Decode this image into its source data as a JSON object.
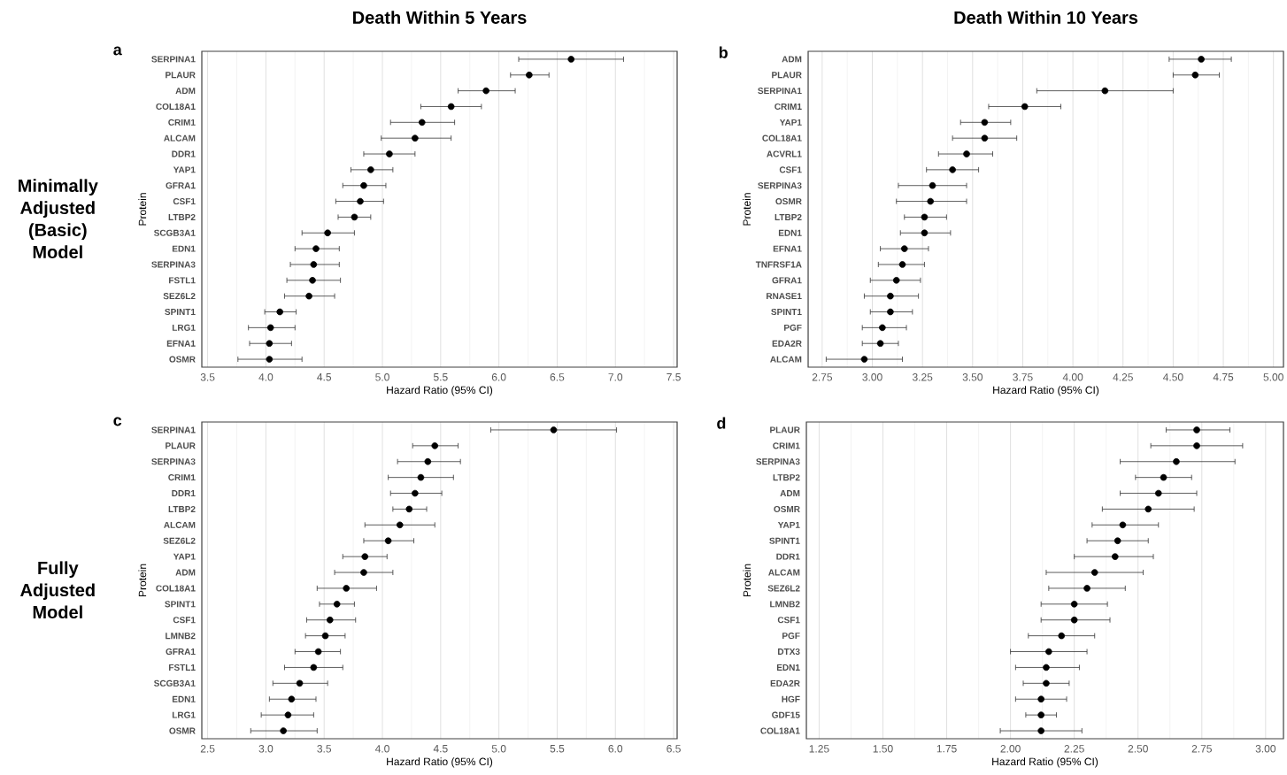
{
  "chart_data": [
    {
      "type": "scatter",
      "orientation": "horizontal",
      "title": "Death Within 5 Years",
      "xlabel": "Hazard Ratio (95% CI)",
      "ylabel": "Protein",
      "annotations": [
        "a",
        "Minimally Adjusted (Basic) Model"
      ],
      "categories": [
        "SERPINA1",
        "PLAUR",
        "ADM",
        "COL18A1",
        "CRIM1",
        "ALCAM",
        "DDR1",
        "YAP1",
        "GFRA1",
        "CSF1",
        "LTBP2",
        "SCGB3A1",
        "EDN1",
        "SERPINA3",
        "FSTL1",
        "SEZ6L2",
        "SPINT1",
        "LRG1",
        "EFNA1",
        "OSMR"
      ],
      "series": [
        {
          "color": "#000000",
          "values": [
            6.62,
            6.26,
            5.89,
            5.59,
            5.34,
            5.28,
            5.06,
            4.9,
            4.84,
            4.81,
            4.76,
            4.53,
            4.43,
            4.41,
            4.4,
            4.37,
            4.12,
            4.04,
            4.03,
            4.03
          ],
          "errors": [
            [
              6.17,
              7.07
            ],
            [
              6.1,
              6.43
            ],
            [
              5.65,
              6.14
            ],
            [
              5.33,
              5.85
            ],
            [
              5.07,
              5.62
            ],
            [
              4.99,
              5.59
            ],
            [
              4.84,
              5.28
            ],
            [
              4.73,
              5.09
            ],
            [
              4.66,
              5.03
            ],
            [
              4.6,
              5.01
            ],
            [
              4.62,
              4.9
            ],
            [
              4.31,
              4.76
            ],
            [
              4.25,
              4.63
            ],
            [
              4.21,
              4.63
            ],
            [
              4.18,
              4.64
            ],
            [
              4.16,
              4.59
            ],
            [
              3.99,
              4.26
            ],
            [
              3.85,
              4.25
            ],
            [
              3.86,
              4.22
            ],
            [
              3.76,
              4.31
            ]
          ]
        }
      ],
      "xlim": [
        3.45,
        7.53
      ],
      "xticks": [
        3.5,
        {
          "value": 4,
          "label": "4.0"
        },
        4.5,
        {
          "value": 5,
          "label": "5.0"
        },
        5.5,
        {
          "value": 6,
          "label": "6.0"
        },
        6.5,
        {
          "value": 7,
          "label": "7.0"
        },
        7.5
      ],
      "grid": "x",
      "marker": "circle"
    },
    {
      "type": "scatter",
      "orientation": "horizontal",
      "title": "Death Within 10 Years",
      "xlabel": "Hazard Ratio (95% CI)",
      "ylabel": "Protein",
      "annotations": [
        "b"
      ],
      "categories": [
        "ADM",
        "PLAUR",
        "SERPINA1",
        "CRIM1",
        "YAP1",
        "COL18A1",
        "ACVRL1",
        "CSF1",
        "SERPINA3",
        "OSMR",
        "LTBP2",
        "EDN1",
        "EFNA1",
        "TNFRSF1A",
        "GFRA1",
        "RNASE1",
        "SPINT1",
        "PGF",
        "EDA2R",
        "ALCAM"
      ],
      "series": [
        {
          "color": "#000000",
          "values": [
            4.64,
            4.61,
            4.16,
            3.76,
            3.56,
            3.56,
            3.47,
            3.4,
            3.3,
            3.29,
            3.26,
            3.26,
            3.16,
            3.15,
            3.12,
            3.09,
            3.09,
            3.05,
            3.04,
            2.96
          ],
          "errors": [
            [
              4.48,
              4.79
            ],
            [
              4.5,
              4.73
            ],
            [
              3.82,
              4.5
            ],
            [
              3.58,
              3.94
            ],
            [
              3.44,
              3.69
            ],
            [
              3.4,
              3.72
            ],
            [
              3.33,
              3.6
            ],
            [
              3.27,
              3.53
            ],
            [
              3.13,
              3.47
            ],
            [
              3.12,
              3.47
            ],
            [
              3.16,
              3.37
            ],
            [
              3.14,
              3.39
            ],
            [
              3.04,
              3.28
            ],
            [
              3.03,
              3.26
            ],
            [
              2.99,
              3.24
            ],
            [
              2.96,
              3.23
            ],
            [
              2.99,
              3.2
            ],
            [
              2.95,
              3.17
            ],
            [
              2.95,
              3.13
            ],
            [
              2.77,
              3.15
            ]
          ]
        }
      ],
      "xlim": [
        2.68,
        5.05
      ],
      "xticks": [
        2.75,
        {
          "value": 3,
          "label": "3.00"
        },
        3.25,
        {
          "value": 3.5,
          "label": "3.50"
        },
        3.75,
        {
          "value": 4,
          "label": "4.00"
        },
        4.25,
        {
          "value": 4.5,
          "label": "4.50"
        },
        4.75,
        {
          "value": 5,
          "label": "5.00"
        }
      ],
      "grid": "x",
      "marker": "circle"
    },
    {
      "type": "scatter",
      "orientation": "horizontal",
      "xlabel": "Hazard Ratio (95% CI)",
      "ylabel": "Protein",
      "annotations": [
        "c",
        "Fully Adjusted Model"
      ],
      "categories": [
        "SERPINA1",
        "PLAUR",
        "SERPINA3",
        "CRIM1",
        "DDR1",
        "LTBP2",
        "ALCAM",
        "SEZ6L2",
        "YAP1",
        "ADM",
        "COL18A1",
        "SPINT1",
        "CSF1",
        "LMNB2",
        "GFRA1",
        "FSTL1",
        "SCGB3A1",
        "EDN1",
        "LRG1",
        "OSMR"
      ],
      "series": [
        {
          "color": "#000000",
          "values": [
            5.47,
            4.45,
            4.39,
            4.33,
            4.28,
            4.23,
            4.15,
            4.05,
            3.85,
            3.84,
            3.69,
            3.61,
            3.55,
            3.51,
            3.45,
            3.41,
            3.29,
            3.22,
            3.19,
            3.15
          ],
          "errors": [
            [
              4.93,
              6.01
            ],
            [
              4.26,
              4.65
            ],
            [
              4.13,
              4.67
            ],
            [
              4.05,
              4.61
            ],
            [
              4.07,
              4.51
            ],
            [
              4.09,
              4.38
            ],
            [
              3.85,
              4.45
            ],
            [
              3.84,
              4.27
            ],
            [
              3.66,
              4.04
            ],
            [
              3.59,
              4.09
            ],
            [
              3.44,
              3.95
            ],
            [
              3.46,
              3.76
            ],
            [
              3.35,
              3.77
            ],
            [
              3.34,
              3.68
            ],
            [
              3.25,
              3.64
            ],
            [
              3.16,
              3.66
            ],
            [
              3.06,
              3.53
            ],
            [
              3.03,
              3.43
            ],
            [
              2.96,
              3.41
            ],
            [
              2.87,
              3.44
            ]
          ]
        }
      ],
      "xlim": [
        2.45,
        6.53
      ],
      "xticks": [
        2.5,
        {
          "value": 3,
          "label": "3.0"
        },
        3.5,
        {
          "value": 4,
          "label": "4.0"
        },
        4.5,
        {
          "value": 5,
          "label": "5.0"
        },
        5.5,
        {
          "value": 6,
          "label": "6.0"
        },
        6.5
      ],
      "grid": "x",
      "marker": "circle"
    },
    {
      "type": "scatter",
      "orientation": "horizontal",
      "xlabel": "Hazard Ratio (95% CI)",
      "ylabel": "Protein",
      "annotations": [
        "d"
      ],
      "categories": [
        "PLAUR",
        "CRIM1",
        "SERPINA3",
        "LTBP2",
        "ADM",
        "OSMR",
        "YAP1",
        "SPINT1",
        "DDR1",
        "ALCAM",
        "SEZ6L2",
        "LMNB2",
        "CSF1",
        "PGF",
        "DTX3",
        "EDN1",
        "EDA2R",
        "HGF",
        "GDF15",
        "COL18A1"
      ],
      "series": [
        {
          "color": "#000000",
          "values": [
            2.73,
            2.73,
            2.65,
            2.6,
            2.58,
            2.54,
            2.44,
            2.42,
            2.41,
            2.33,
            2.3,
            2.25,
            2.25,
            2.2,
            2.15,
            2.14,
            2.14,
            2.12,
            2.12,
            2.12
          ],
          "errors": [
            [
              2.61,
              2.86
            ],
            [
              2.55,
              2.91
            ],
            [
              2.43,
              2.88
            ],
            [
              2.49,
              2.71
            ],
            [
              2.43,
              2.73
            ],
            [
              2.36,
              2.72
            ],
            [
              2.32,
              2.58
            ],
            [
              2.3,
              2.54
            ],
            [
              2.25,
              2.56
            ],
            [
              2.14,
              2.52
            ],
            [
              2.15,
              2.45
            ],
            [
              2.12,
              2.38
            ],
            [
              2.12,
              2.39
            ],
            [
              2.07,
              2.33
            ],
            [
              2.0,
              2.3
            ],
            [
              2.02,
              2.27
            ],
            [
              2.05,
              2.23
            ],
            [
              2.02,
              2.22
            ],
            [
              2.06,
              2.18
            ],
            [
              1.96,
              2.28
            ]
          ]
        }
      ],
      "xlim": [
        1.2,
        3.07
      ],
      "xticks": [
        1.25,
        {
          "value": 1.5,
          "label": "1.50"
        },
        1.75,
        {
          "value": 2,
          "label": "2.00"
        },
        2.25,
        {
          "value": 2.5,
          "label": "2.50"
        },
        2.75,
        {
          "value": 3,
          "label": "3.00"
        }
      ],
      "grid": "x",
      "marker": "circle"
    }
  ]
}
